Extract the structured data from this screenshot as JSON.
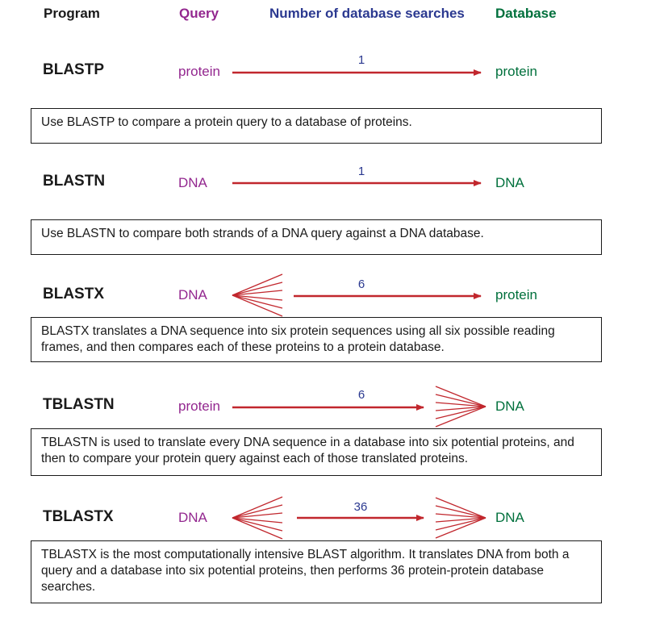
{
  "header": {
    "program": "Program",
    "query": "Query",
    "searches": "Number of database searches",
    "database": "Database"
  },
  "rows": [
    {
      "program": "BLASTP",
      "query": "protein",
      "searches": "1",
      "database": "protein",
      "description": "Use BLASTP to compare a protein query to a database of proteins."
    },
    {
      "program": "BLASTN",
      "query": "DNA",
      "searches": "1",
      "database": "DNA",
      "description": "Use BLASTN to compare both strands of a DNA query against a DNA database."
    },
    {
      "program": "BLASTX",
      "query": "DNA",
      "searches": "6",
      "database": "protein",
      "description": "BLASTX translates a DNA sequence into six protein sequences using all six possible reading frames, and then compares each of these proteins to a protein database."
    },
    {
      "program": "TBLASTN",
      "query": "protein",
      "searches": "6",
      "database": "DNA",
      "description": "TBLASTN is used to translate every DNA sequence in a database into six potential proteins, and then to compare your protein query against each of those translated proteins."
    },
    {
      "program": "TBLASTX",
      "query": "DNA",
      "searches": "36",
      "database": "DNA",
      "description": "TBLASTX is the most computationally intensive BLAST algorithm. It translates DNA from both a query and a database into six potential proteins, then performs 36 protein-protein database searches."
    }
  ],
  "colors": {
    "arrow": "#c1272d",
    "query": "#93278f",
    "searches": "#2b3990",
    "database": "#00703c"
  }
}
